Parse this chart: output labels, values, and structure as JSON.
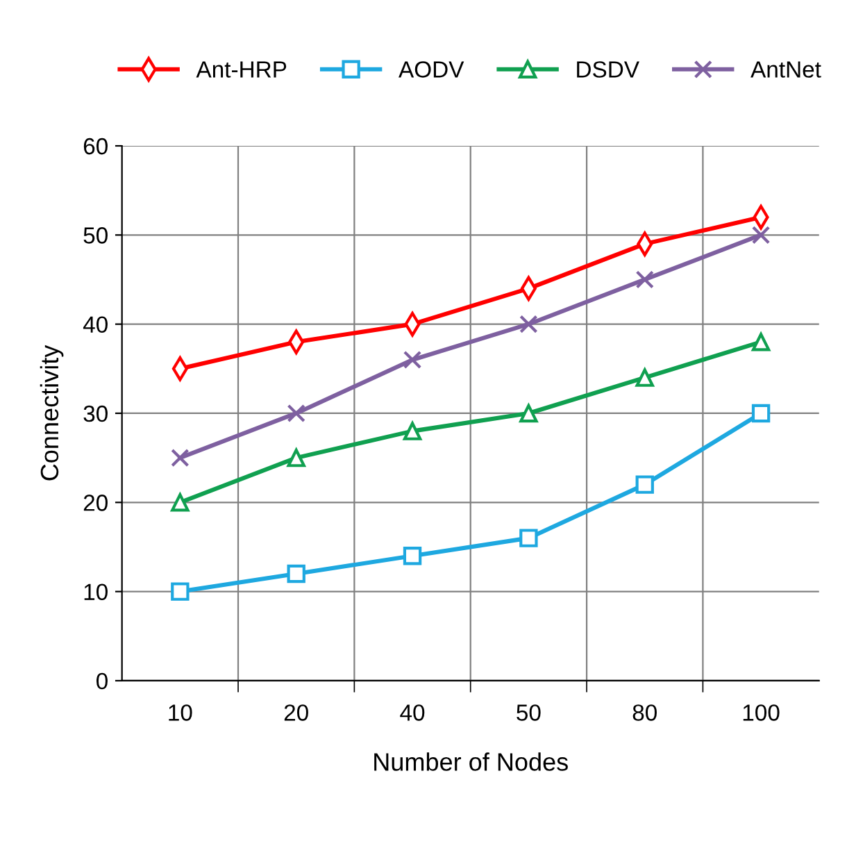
{
  "chart_data": {
    "type": "line",
    "xlabel": "Number of Nodes",
    "ylabel": "Connectivity",
    "categories": [
      "10",
      "20",
      "40",
      "50",
      "80",
      "100"
    ],
    "series": [
      {
        "name": "Ant-HRP",
        "color": "#ff0000",
        "marker": "diamond",
        "values": [
          35,
          38,
          40,
          44,
          49,
          52
        ]
      },
      {
        "name": "AODV",
        "color": "#1ea8e0",
        "marker": "square",
        "values": [
          10,
          12,
          14,
          16,
          22,
          30
        ]
      },
      {
        "name": "DSDV",
        "color": "#10a050",
        "marker": "triangle",
        "values": [
          20,
          25,
          28,
          30,
          34,
          38
        ]
      },
      {
        "name": "AntNet",
        "color": "#7e60a0",
        "marker": "cross",
        "values": [
          25,
          30,
          36,
          40,
          45,
          50
        ]
      }
    ],
    "ylim": [
      0,
      60
    ],
    "yticks": [
      0,
      10,
      20,
      30,
      40,
      50,
      60
    ],
    "grid": true,
    "legend": "top",
    "line_style": "solid"
  }
}
